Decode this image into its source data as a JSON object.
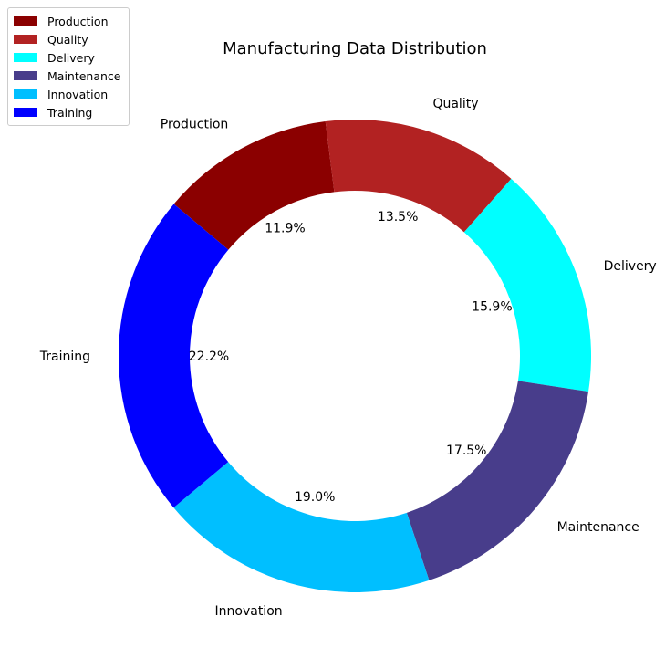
{
  "chart_data": {
    "type": "pie",
    "donut": true,
    "title": "Manufacturing Data Distribution",
    "categories": [
      "Production",
      "Quality",
      "Delivery",
      "Maintenance",
      "Innovation",
      "Training"
    ],
    "values": [
      11.9,
      13.5,
      15.9,
      17.5,
      19.0,
      22.2
    ],
    "percent_labels": [
      "11.9%",
      "13.5%",
      "15.9%",
      "17.5%",
      "19.0%",
      "22.2%"
    ],
    "colors": [
      "#8b0000",
      "#b22222",
      "#00ffff",
      "#483d8b",
      "#00bfff",
      "#0000ff"
    ],
    "start_angle_deg": 140,
    "direction": "clockwise",
    "legend": {
      "placement": "top-left",
      "entries": [
        "Production",
        "Quality",
        "Delivery",
        "Maintenance",
        "Innovation",
        "Training"
      ]
    }
  }
}
